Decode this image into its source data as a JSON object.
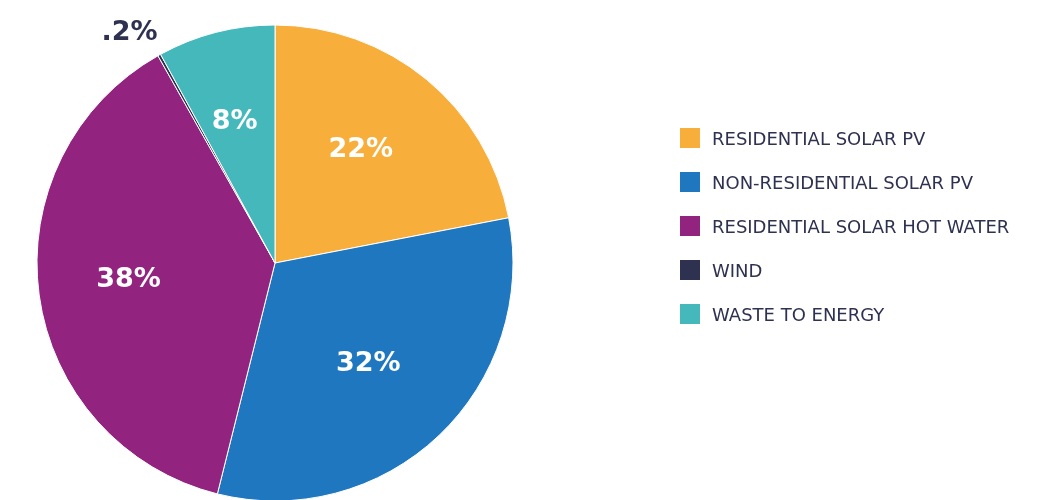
{
  "chart_data": {
    "type": "pie",
    "categories": [
      "RESIDENTIAL SOLAR PV",
      "NON-RESIDENTIAL SOLAR PV",
      "RESIDENTIAL SOLAR HOT WATER",
      "WIND",
      "WASTE TO ENERGY"
    ],
    "values": [
      22,
      32,
      38,
      0.2,
      8
    ],
    "colors": [
      "#f8ae3a",
      "#1f77bf",
      "#92237f",
      "#2e3150",
      "#45b8bb"
    ],
    "value_labels": [
      "22%",
      "32%",
      "38%",
      ".2%",
      "8%"
    ],
    "legend": "right"
  }
}
